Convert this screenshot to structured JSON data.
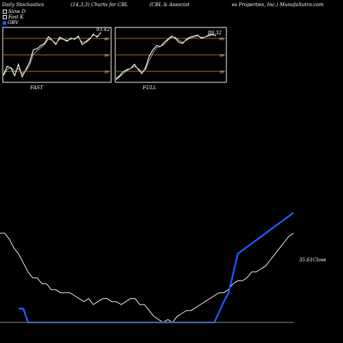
{
  "header": {
    "left": "Daily Stochastics",
    "mid": "(14,3,3) Charts for CBL",
    "right1": "(CBL & Associat",
    "right2": "es Properties, Inc.) MunafaSutra.com"
  },
  "legend": [
    {
      "label": "Slow D",
      "color": "#ffffff"
    },
    {
      "label": "Fast K",
      "color": "#ffffff"
    },
    {
      "label": "OBV",
      "color": "#1e5cff"
    }
  ],
  "chart_data": [
    {
      "type": "line",
      "label": "FAST",
      "value_label": "93.42",
      "ylim": [
        0,
        100
      ],
      "levels": [
        20,
        50,
        80
      ],
      "series": [
        {
          "values": [
            12,
            28,
            25,
            10,
            32,
            8,
            22,
            36,
            60,
            62,
            68,
            72,
            85,
            78,
            70,
            84,
            80,
            76,
            82,
            80,
            86,
            70,
            74,
            80,
            90,
            84,
            93
          ]
        },
        {
          "values": [
            10,
            22,
            26,
            18,
            24,
            14,
            20,
            30,
            52,
            58,
            64,
            70,
            80,
            78,
            72,
            80,
            80,
            78,
            80,
            82,
            84,
            74,
            76,
            82,
            88,
            86,
            92
          ]
        }
      ]
    },
    {
      "type": "line",
      "label": "FULL",
      "value_label": "89.32",
      "ylim": [
        0,
        100
      ],
      "levels": [
        20,
        50,
        80
      ],
      "series": [
        {
          "values": [
            4,
            10,
            18,
            22,
            24,
            32,
            22,
            14,
            26,
            48,
            60,
            68,
            66,
            74,
            80,
            86,
            82,
            74,
            72,
            80,
            84,
            86,
            88,
            82,
            84,
            88,
            90,
            86
          ]
        },
        {
          "values": [
            2,
            8,
            14,
            20,
            24,
            28,
            24,
            18,
            22,
            40,
            54,
            64,
            66,
            70,
            78,
            84,
            84,
            78,
            74,
            78,
            82,
            84,
            86,
            84,
            84,
            86,
            88,
            87
          ]
        }
      ]
    },
    {
      "type": "line",
      "label": "Close",
      "value_label": "35.61",
      "series": [
        {
          "name": "Close",
          "values": [
            30,
            30,
            28,
            25,
            23,
            20,
            17,
            15,
            15,
            13,
            13,
            11,
            11,
            10,
            10,
            10,
            9,
            8,
            7,
            8,
            6,
            7,
            8,
            8,
            7,
            7,
            6,
            7,
            8,
            8,
            6,
            6,
            4,
            2,
            1,
            0,
            1,
            0,
            2,
            3,
            4,
            4,
            5,
            6,
            7,
            8,
            9,
            10,
            10,
            11,
            13,
            14,
            14,
            15,
            17,
            17,
            18,
            19,
            21,
            23,
            25,
            27,
            29,
            30
          ]
        },
        {
          "name": "OBV",
          "values": [
            null,
            null,
            null,
            null,
            8,
            8,
            0,
            0,
            0,
            0,
            0,
            0,
            0,
            0,
            0,
            0,
            0,
            0,
            0,
            0,
            0,
            0,
            0,
            0,
            0,
            0,
            0,
            0,
            0,
            0,
            0,
            0,
            0,
            0,
            0,
            0,
            0,
            0,
            0,
            0,
            0,
            0,
            0,
            0,
            0,
            0,
            0,
            6,
            12,
            17,
            28,
            40,
            42,
            44,
            46,
            48,
            50,
            52,
            54,
            56,
            58,
            60,
            62,
            64
          ]
        }
      ]
    }
  ]
}
